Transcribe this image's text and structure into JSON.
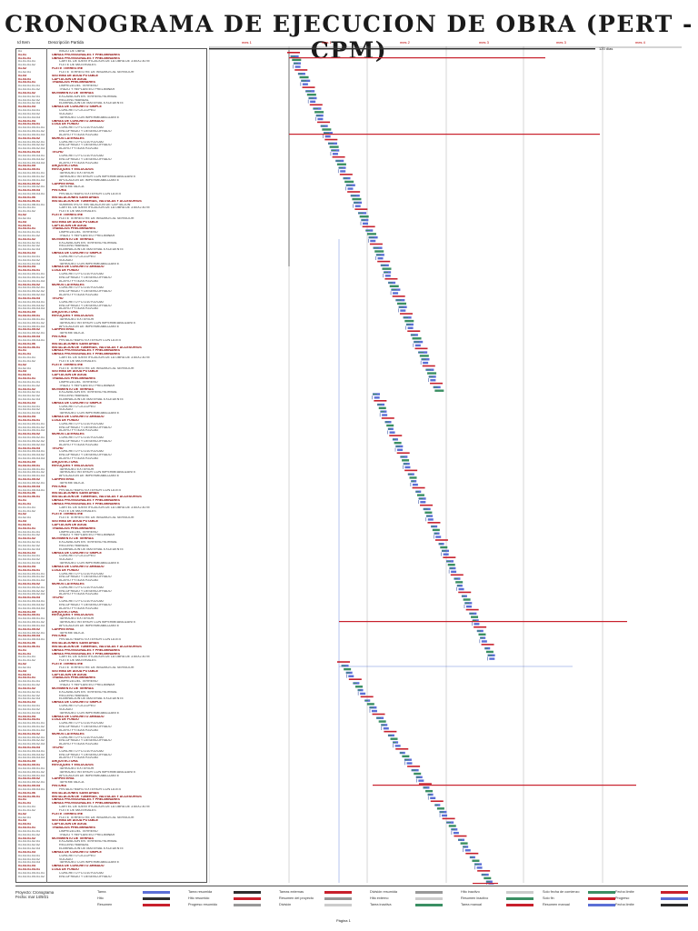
{
  "title": "CRONOGRAMA DE EJECUCION DE OBRA (PERT - CPM)",
  "columns": {
    "id": "Id   Item",
    "name": "Descripción Partida"
  },
  "timeline": {
    "periods": [
      "mes 1",
      "mes 1",
      "mes 2",
      "mes 3",
      "mes 3",
      "mes 4"
    ],
    "duration_label": "120 días"
  },
  "first_rows": [
    {
      "id": "01",
      "name": "INICIO DE OBRA",
      "summary": false
    },
    {
      "id": "01.01",
      "name": "OBRAS PROVISIONALES Y PRELIMINARES",
      "summary": true
    },
    {
      "id": "01.01.01",
      "name": "OBRAS PROVISIONALES Y PRELIMINARES",
      "summary": true
    },
    {
      "id": "01.01.01.01",
      "name": "CARTEL DE IDENTIFICACION DE LA OBRA DE 3.60X2.40 M",
      "summary": false
    },
    {
      "id": "01.01.01.02",
      "name": "FLETE DE MATERIALES",
      "summary": false
    },
    {
      "id": "01.02",
      "name": "FLETE TERRESTRE",
      "summary": true
    },
    {
      "id": "01.02.01",
      "name": "FLETE TERRESTRE DE INSUMOS AL SERVIDOR",
      "summary": false
    },
    {
      "id": "01.03",
      "name": "SISTEMA DE AGUA POTABLE",
      "summary": true
    },
    {
      "id": "01.03.01",
      "name": "CAPTACION DE AGUA",
      "summary": true
    },
    {
      "id": "01.03.01.01",
      "name": "TRABAJOS PRELIMINARES",
      "summary": true
    },
    {
      "id": "01.03.01.01.01",
      "name": "LIMPIEZA DEL TERRENO",
      "summary": false
    },
    {
      "id": "01.03.01.01.02",
      "name": "TRAZO Y REPLANTEO PRELIMINAR",
      "summary": false
    },
    {
      "id": "01.03.01.02",
      "name": "MOVIMIENTO DE TIERRAS",
      "summary": true
    },
    {
      "id": "01.03.01.02.01",
      "name": "EXCAVACION EN TERRENO NORMAL",
      "summary": false
    },
    {
      "id": "01.03.01.02.02",
      "name": "RELLENO MANUAL",
      "summary": false
    },
    {
      "id": "01.03.01.02.03",
      "name": "ELIMINACION DE MATERIAL EXCEDENTE",
      "summary": false
    },
    {
      "id": "01.03.01.03",
      "name": "OBRAS DE CONCRETO SIMPLE",
      "summary": true
    },
    {
      "id": "01.03.01.03.01",
      "name": "CONCRETO CICLOPEO",
      "summary": false
    },
    {
      "id": "01.03.01.03.02",
      "name": "SOLADO",
      "summary": false
    },
    {
      "id": "01.03.01.03.03",
      "name": "TARRAJEO CON IMPERMEABILIZANTE",
      "summary": false
    },
    {
      "id": "01.03.01.04",
      "name": "OBRAS DE CONCRETO ARMADO",
      "summary": true
    },
    {
      "id": "01.03.01.04.01",
      "name": "LOSA DE FONDO",
      "summary": true
    },
    {
      "id": "01.03.01.04.01.01",
      "name": "CONCRETO FC=210 KG/CM2",
      "summary": false
    },
    {
      "id": "01.03.01.04.01.02",
      "name": "ENCOFRADO Y DESENCOFRADO",
      "summary": false
    },
    {
      "id": "01.03.01.04.01.03",
      "name": "ACERO FY=4200 KG/CM2",
      "summary": false
    },
    {
      "id": "01.03.01.04.02",
      "name": "MUROS LATERALES",
      "summary": true
    },
    {
      "id": "01.03.01.04.02.01",
      "name": "CONCRETO FC=210 KG/CM2",
      "summary": false
    },
    {
      "id": "01.03.01.04.02.02",
      "name": "ENCOFRADO Y DESENCOFRADO",
      "summary": false
    },
    {
      "id": "01.03.01.04.02.03",
      "name": "ACERO FY=4200 KG/CM2",
      "summary": false
    },
    {
      "id": "01.03.01.04.03",
      "name": "TECHO",
      "summary": true
    },
    {
      "id": "01.03.01.04.03.01",
      "name": "CONCRETO FC=210 KG/CM2",
      "summary": false
    },
    {
      "id": "01.03.01.04.03.02",
      "name": "ENCOFRADO Y DESENCOFRADO",
      "summary": false
    },
    {
      "id": "01.03.01.04.03.03",
      "name": "ACERO FY=4200 KG/CM2",
      "summary": false
    },
    {
      "id": "01.03.01.05",
      "name": "ARQUITECTURA",
      "summary": true
    },
    {
      "id": "01.03.01.05.01",
      "name": "REVOQUES Y ENLUCIDOS",
      "summary": true
    },
    {
      "id": "01.03.01.05.01.01",
      "name": "TARRAJEO EXTERIOR",
      "summary": false
    },
    {
      "id": "01.03.01.05.01.02",
      "name": "TARRAJEO INTERIOR CON IMPERMEABILIZANTE",
      "summary": false
    },
    {
      "id": "01.03.01.05.01.03",
      "name": "APLICACION DE IMPERMEABILIZANTE",
      "summary": false
    },
    {
      "id": "01.03.01.05.02",
      "name": "CARPINTERIA",
      "summary": true
    },
    {
      "id": "01.03.01.05.02.01",
      "name": "TAPA METALICA",
      "summary": false
    },
    {
      "id": "01.03.01.05.03",
      "name": "PINTURA",
      "summary": true
    },
    {
      "id": "01.03.01.05.03.01",
      "name": "PINTADO MURO EXTERIOR CON LATEX",
      "summary": false
    },
    {
      "id": "01.03.01.06",
      "name": "INSTALACIONES SANITARIAS",
      "summary": true
    },
    {
      "id": "01.03.01.06.01",
      "name": "INSTALACION DE TUBERIAS, VALVULAS Y ACCESORIOS",
      "summary": true
    },
    {
      "id": "01.03.01.06.01.01",
      "name": "SUMINISTRO E INSTALACION DE CAPTACION",
      "summary": false
    }
  ],
  "legend": {
    "project": "Proyecto: Cronograma",
    "date": "Fecha: mar 14/9/21",
    "items": [
      "Tarea",
      "Tarea resumida",
      "Tareas externas",
      "División resumida",
      "Hito inactivo",
      "Solo fecha de comienzo",
      "Fecha límite",
      "Hito",
      "Hito resumido",
      "Resumen del proyecto",
      "Hito externo",
      "Resumen inactivo",
      "Solo fin",
      "Progreso",
      "Resumen",
      "Progreso resumido",
      "División",
      "Tarea inactiva",
      "Tarea manual",
      "Resumen manual",
      "Fecha límite"
    ],
    "page": "Página 1"
  },
  "colors": {
    "task": "#5b6fd6",
    "summary": "#2e2e2e",
    "critical": "#c8202c",
    "progress": "#3a8f63",
    "link": "#1f3a9a"
  }
}
